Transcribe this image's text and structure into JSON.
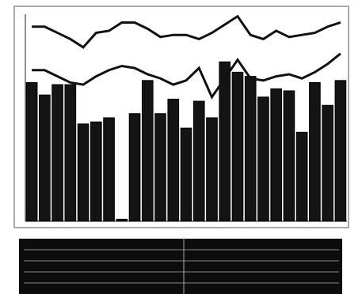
{
  "chart_data": {
    "type": "bar",
    "categories": [
      null,
      null,
      null,
      null,
      null,
      null,
      null,
      null,
      null,
      null,
      null,
      null,
      null,
      null,
      null,
      null,
      null,
      null,
      null,
      null,
      null,
      null,
      null,
      null,
      null
    ],
    "values": [
      67,
      61,
      66,
      66,
      47,
      48,
      50,
      1,
      52,
      68,
      52,
      59,
      45,
      58,
      50,
      77,
      72,
      70,
      60,
      64,
      63,
      43,
      67,
      56,
      68
    ],
    "color": "#141414",
    "ylim": [
      0,
      100
    ],
    "lines": [
      {
        "color": "#111111",
        "values": [
          94,
          94,
          91,
          88,
          84,
          91,
          92,
          96,
          96,
          93,
          89,
          90,
          90,
          88,
          91,
          95,
          99,
          90,
          88,
          92,
          89,
          90,
          91,
          94,
          96
        ]
      },
      {
        "color": "#111111",
        "values": [
          73,
          73,
          70,
          67,
          66,
          70,
          73,
          75,
          74,
          71,
          69,
          66,
          68,
          74,
          60,
          69,
          78,
          69,
          68,
          70,
          71,
          69,
          72,
          76,
          81
        ]
      }
    ]
  }
}
